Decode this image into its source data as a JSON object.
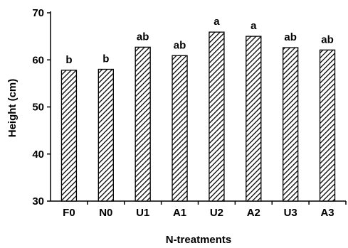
{
  "chart_data": {
    "type": "bar",
    "categories": [
      "F0",
      "N0",
      "U1",
      "A1",
      "U2",
      "A2",
      "U3",
      "A3"
    ],
    "values": [
      57.8,
      58.0,
      62.7,
      60.9,
      65.9,
      65.0,
      62.6,
      62.1
    ],
    "significance_labels": [
      "b",
      "b",
      "ab",
      "ab",
      "a",
      "a",
      "ab",
      "ab"
    ],
    "title": "",
    "xlabel": "N-treatments",
    "ylabel": "Height (cm)",
    "ylim": [
      30,
      70
    ],
    "yticks": [
      30,
      40,
      50,
      60,
      70
    ],
    "grid": false,
    "bar_fill": "diagonal-hatch",
    "colors": {
      "bar_stroke": "#000000",
      "hatch": "#000000",
      "background": "#ffffff"
    }
  }
}
